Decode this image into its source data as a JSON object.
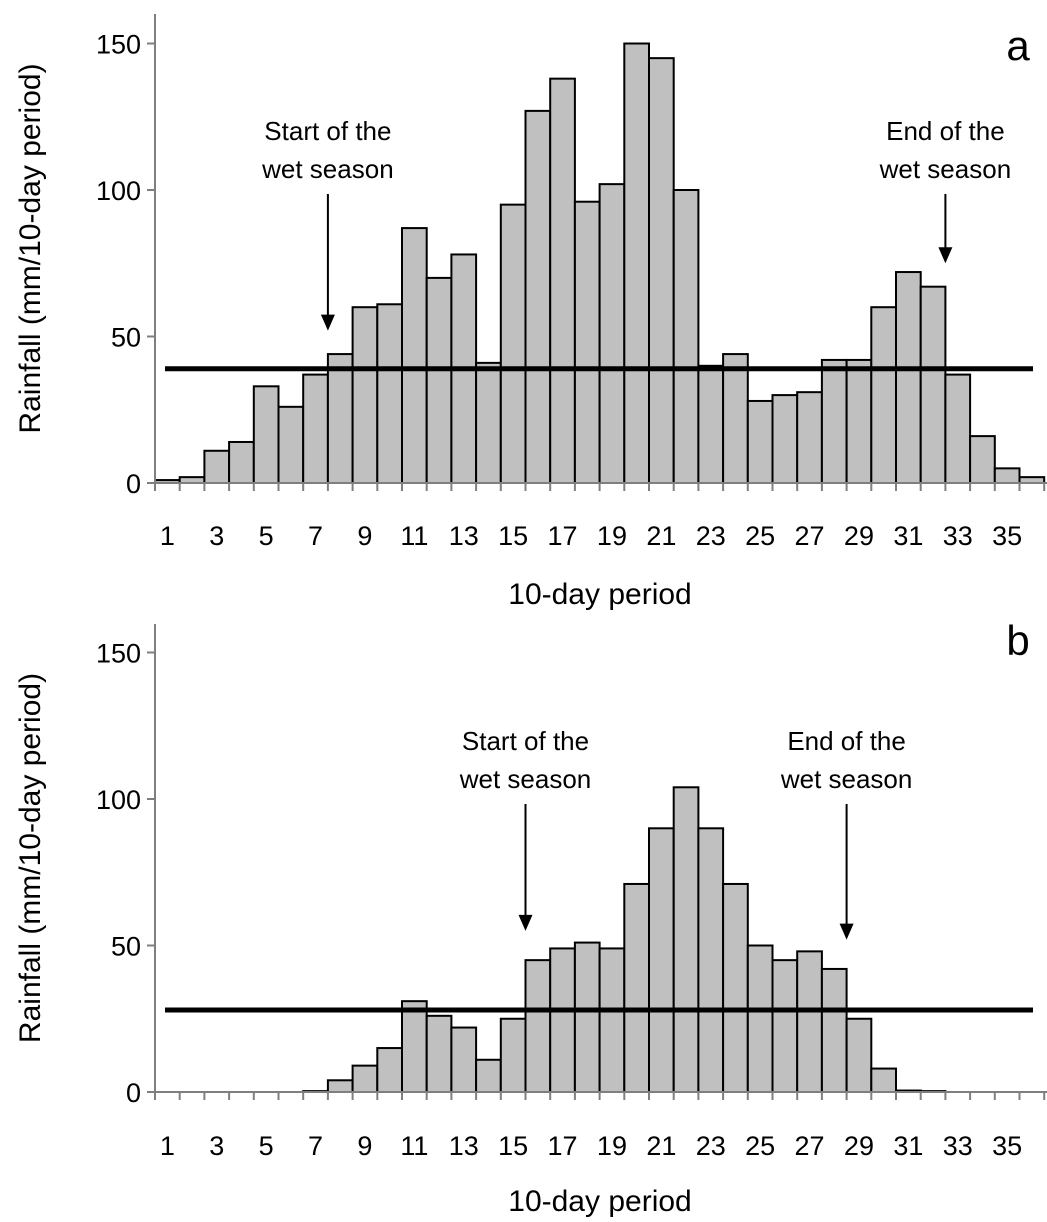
{
  "chart_data": [
    {
      "type": "bar",
      "panel_label": "a",
      "x": [
        1,
        2,
        3,
        4,
        5,
        6,
        7,
        8,
        9,
        10,
        11,
        12,
        13,
        14,
        15,
        16,
        17,
        18,
        19,
        20,
        21,
        22,
        23,
        24,
        25,
        26,
        27,
        28,
        29,
        30,
        31,
        32,
        33,
        34,
        35,
        36
      ],
      "values": [
        1,
        2,
        11,
        14,
        33,
        26,
        37,
        44,
        60,
        61,
        87,
        70,
        78,
        41,
        95,
        127,
        138,
        96,
        102,
        150,
        145,
        100,
        40,
        44,
        28,
        30,
        31,
        42,
        42,
        60,
        72,
        67,
        37,
        16,
        5,
        2
      ],
      "threshold": 39,
      "xlabel": "10-day period",
      "ylabel": "Rainfall (mm/10-day period)",
      "xticks": [
        "1",
        "3",
        "5",
        "7",
        "9",
        "11",
        "13",
        "15",
        "17",
        "19",
        "21",
        "23",
        "25",
        "27",
        "29",
        "31",
        "33",
        "35"
      ],
      "yticks": [
        "0",
        "50",
        "100",
        "150"
      ],
      "ylim": [
        0,
        160
      ],
      "annotations": [
        {
          "lines": [
            "Start of the",
            "wet season"
          ],
          "period": 7.5,
          "target_value": 52
        },
        {
          "lines": [
            "End of the",
            "wet season"
          ],
          "period": 32.5,
          "target_value": 75
        }
      ]
    },
    {
      "type": "bar",
      "panel_label": "b",
      "x": [
        1,
        2,
        3,
        4,
        5,
        6,
        7,
        8,
        9,
        10,
        11,
        12,
        13,
        14,
        15,
        16,
        17,
        18,
        19,
        20,
        21,
        22,
        23,
        24,
        25,
        26,
        27,
        28,
        29,
        30,
        31,
        32,
        33,
        34,
        35,
        36
      ],
      "values": [
        0,
        0,
        0,
        0,
        0,
        0,
        0.3,
        4,
        9,
        15,
        31,
        26,
        22,
        11,
        25,
        45,
        49,
        51,
        49,
        71,
        90,
        104,
        90,
        71,
        50,
        45,
        48,
        42,
        25,
        8,
        0.5,
        0.3,
        0,
        0,
        0,
        0
      ],
      "threshold": 28,
      "xlabel": "10-day period",
      "ylabel": "Rainfall (mm/10-day period)",
      "xticks": [
        "1",
        "3",
        "5",
        "7",
        "9",
        "11",
        "13",
        "15",
        "17",
        "19",
        "21",
        "23",
        "25",
        "27",
        "29",
        "31",
        "33",
        "35"
      ],
      "yticks": [
        "0",
        "50",
        "100",
        "150"
      ],
      "ylim": [
        0,
        160
      ],
      "annotations": [
        {
          "lines": [
            "Start of the",
            "wet season"
          ],
          "period": 15.5,
          "target_value": 55
        },
        {
          "lines": [
            "End of the",
            "wet season"
          ],
          "period": 28.5,
          "target_value": 52
        }
      ]
    }
  ]
}
